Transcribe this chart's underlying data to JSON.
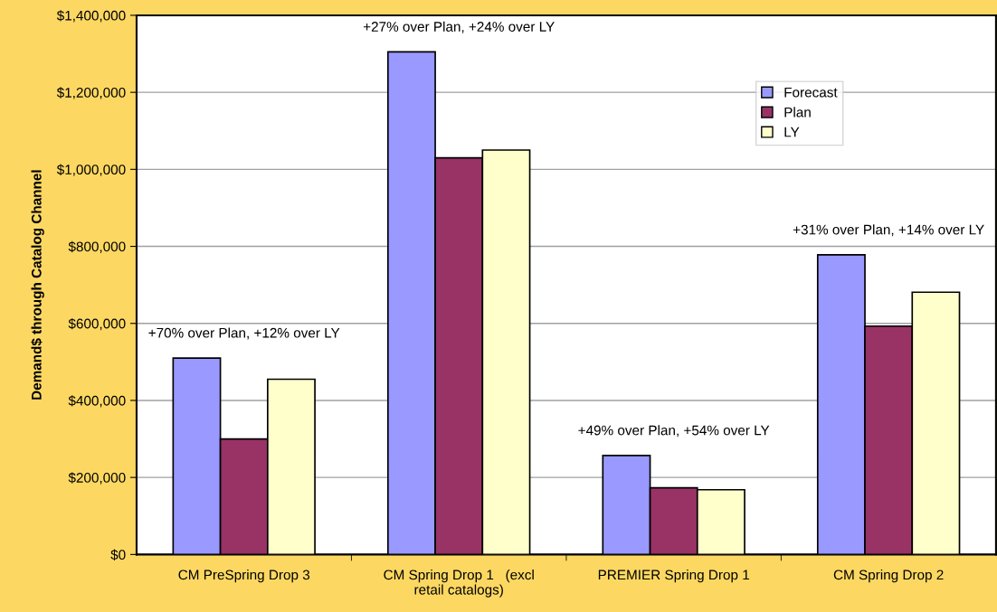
{
  "chart_data": {
    "type": "bar",
    "ylabel": "Demand$ through Catalog Channel",
    "categories": [
      "CM PreSpring Drop 3",
      "CM Spring Drop 1   (excl\nretail catalogs)",
      "PREMIER Spring Drop 1",
      "CM Spring Drop 2"
    ],
    "series": [
      {
        "name": "Forecast",
        "color": "#9999ff",
        "values": [
          510000,
          1305000,
          257000,
          778000
        ]
      },
      {
        "name": "Plan",
        "color": "#993366",
        "values": [
          300000,
          1030000,
          173000,
          593000
        ]
      },
      {
        "name": "LY",
        "color": "#ffffcc",
        "values": [
          455000,
          1050000,
          168000,
          681000
        ]
      }
    ],
    "ylim": [
      0,
      1400000
    ],
    "yticks": [
      {
        "value": 0,
        "label": "$0"
      },
      {
        "value": 200000,
        "label": "$200,000"
      },
      {
        "value": 400000,
        "label": "$400,000"
      },
      {
        "value": 600000,
        "label": "$600,000"
      },
      {
        "value": 800000,
        "label": "$800,000"
      },
      {
        "value": 1000000,
        "label": "$1,000,000"
      },
      {
        "value": 1200000,
        "label": "$1,200,000"
      },
      {
        "value": 1400000,
        "label": "$1,400,000"
      }
    ],
    "annotations": [
      "+70% over Plan, +12% over LY",
      "+27% over Plan, +24% over LY",
      "+49% over Plan, +54% over LY",
      "+31% over Plan, +14% over LY"
    ],
    "grid": "y",
    "legend": "top right"
  }
}
